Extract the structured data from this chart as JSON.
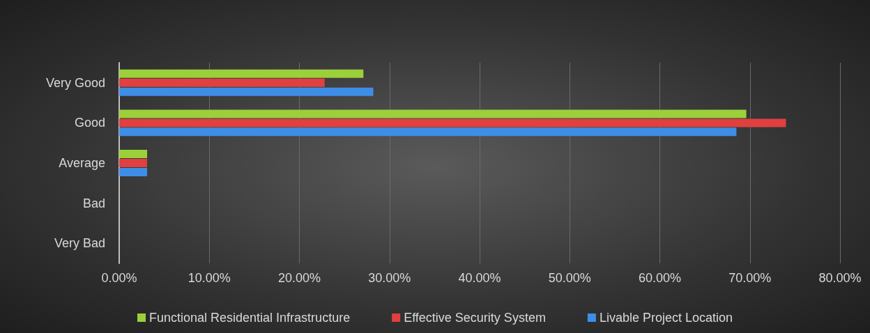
{
  "chart_data": {
    "type": "bar",
    "orientation": "horizontal",
    "categories": [
      "Very Good",
      "Good",
      "Average",
      "Bad",
      "Very Bad"
    ],
    "series": [
      {
        "name": "Functional Residential Infrastructure",
        "color": "#9bd03a",
        "values": [
          27.1,
          69.6,
          3.1,
          0,
          0
        ]
      },
      {
        "name": "Effective Security System",
        "color": "#e0403f",
        "values": [
          22.8,
          74.0,
          3.1,
          0,
          0
        ]
      },
      {
        "name": "Livable Project Location",
        "color": "#3e8ee8",
        "values": [
          28.2,
          68.5,
          3.1,
          0,
          0
        ]
      }
    ],
    "xlim": [
      0,
      80
    ],
    "xticks": [
      {
        "value": 0,
        "label": "0.00%"
      },
      {
        "value": 10,
        "label": "10.00%"
      },
      {
        "value": 20,
        "label": "20.00%"
      },
      {
        "value": 30,
        "label": "30.00%"
      },
      {
        "value": 40,
        "label": "40.00%"
      },
      {
        "value": 50,
        "label": "50.00%"
      },
      {
        "value": 60,
        "label": "60.00%"
      },
      {
        "value": 70,
        "label": "70.00%"
      },
      {
        "value": 80,
        "label": "80.00%"
      }
    ],
    "grid": "x",
    "legend": "bottom"
  }
}
